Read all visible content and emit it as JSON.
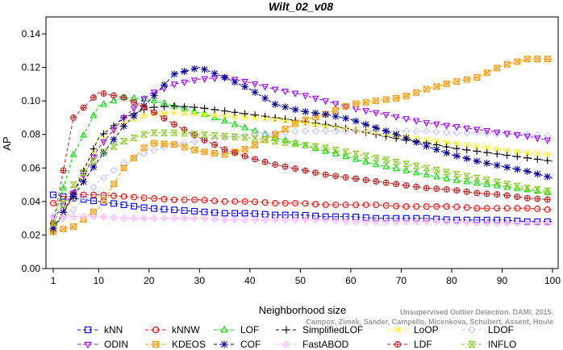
{
  "chart_data": {
    "type": "line",
    "title": "Wilt_02_v08",
    "xlabel": "Neighborhood size",
    "ylabel": "AP",
    "xlim": [
      1,
      100
    ],
    "ylim": [
      0,
      0.14
    ],
    "x_ticks": [
      1,
      10,
      20,
      30,
      40,
      50,
      60,
      70,
      80,
      90,
      100
    ],
    "y_ticks": [
      0.0,
      0.02,
      0.04,
      0.06,
      0.08,
      0.1,
      0.12,
      0.14
    ],
    "y_tick_labels": [
      "0.00",
      "0.02",
      "0.04",
      "0.06",
      "0.08",
      "0.10",
      "0.12",
      "0.14"
    ],
    "grid": false,
    "legend_position": "bottom",
    "citation": [
      "Unsupervised Outlier Detection. DAMI, 2015.",
      "Campos, Zimek, Sander, Campello, Micenkova, Schubert, Assent, Houle"
    ],
    "x": [
      1,
      5,
      10,
      15,
      20,
      25,
      30,
      35,
      40,
      45,
      50,
      55,
      60,
      65,
      70,
      75,
      80,
      85,
      90,
      95,
      100
    ],
    "series": [
      {
        "name": "kNN",
        "color": "#0000ff",
        "marker": "square",
        "line": "dashed",
        "values": [
          0.044,
          0.042,
          0.04,
          0.038,
          0.036,
          0.035,
          0.034,
          0.033,
          0.033,
          0.032,
          0.032,
          0.031,
          0.031,
          0.03,
          0.03,
          0.03,
          0.029,
          0.029,
          0.029,
          0.028,
          0.028
        ]
      },
      {
        "name": "kNNW",
        "color": "#ff0000",
        "marker": "circle",
        "line": "dashed",
        "values": [
          0.039,
          0.044,
          0.044,
          0.043,
          0.042,
          0.041,
          0.041,
          0.04,
          0.04,
          0.039,
          0.039,
          0.038,
          0.038,
          0.038,
          0.037,
          0.037,
          0.037,
          0.036,
          0.036,
          0.036,
          0.035
        ]
      },
      {
        "name": "LOF",
        "color": "#00dd00",
        "marker": "triangle",
        "line": "dashed",
        "values": [
          0.028,
          0.068,
          0.097,
          0.102,
          0.101,
          0.097,
          0.093,
          0.088,
          0.083,
          0.078,
          0.074,
          0.07,
          0.066,
          0.062,
          0.059,
          0.056,
          0.053,
          0.051,
          0.049,
          0.047,
          0.045
        ]
      },
      {
        "name": "SimplifiedLOF",
        "color": "#000000",
        "marker": "plus",
        "line": "dashed",
        "values": [
          0.022,
          0.045,
          0.078,
          0.09,
          0.096,
          0.097,
          0.096,
          0.094,
          0.092,
          0.09,
          0.088,
          0.086,
          0.083,
          0.08,
          0.077,
          0.075,
          0.072,
          0.07,
          0.068,
          0.066,
          0.064
        ]
      },
      {
        "name": "LoOP",
        "color": "#ffee00",
        "marker": "x",
        "line": "dashed",
        "values": [
          0.023,
          0.042,
          0.075,
          0.087,
          0.092,
          0.093,
          0.092,
          0.091,
          0.09,
          0.089,
          0.087,
          0.085,
          0.083,
          0.081,
          0.079,
          0.077,
          0.075,
          0.073,
          0.071,
          0.069,
          0.068
        ]
      },
      {
        "name": "LDOF",
        "color": "#c8c8ff",
        "marker": "diamond",
        "line": "dashed",
        "values": [
          0.025,
          0.035,
          0.052,
          0.063,
          0.07,
          0.074,
          0.076,
          0.078,
          0.08,
          0.081,
          0.082,
          0.082,
          0.082,
          0.082,
          0.082,
          0.082,
          0.081,
          0.081,
          0.08,
          0.08,
          0.079
        ]
      },
      {
        "name": "ODIN",
        "color": "#9900ff",
        "marker": "triangle-down",
        "line": "dashed",
        "values": [
          0.03,
          0.045,
          0.072,
          0.09,
          0.104,
          0.11,
          0.113,
          0.114,
          0.111,
          0.107,
          0.104,
          0.1,
          0.096,
          0.093,
          0.09,
          0.087,
          0.085,
          0.083,
          0.081,
          0.079,
          0.076
        ]
      },
      {
        "name": "KDEOS",
        "color": "#ff9900",
        "marker": "square-x",
        "line": "dashed",
        "values": [
          0.022,
          0.025,
          0.036,
          0.06,
          0.075,
          0.074,
          0.07,
          0.068,
          0.072,
          0.08,
          0.088,
          0.092,
          0.098,
          0.1,
          0.102,
          0.107,
          0.111,
          0.114,
          0.121,
          0.125,
          0.125
        ]
      },
      {
        "name": "COF",
        "color": "#000099",
        "marker": "star",
        "line": "dashed",
        "values": [
          0.024,
          0.043,
          0.065,
          0.085,
          0.1,
          0.116,
          0.12,
          0.114,
          0.107,
          0.098,
          0.094,
          0.092,
          0.089,
          0.084,
          0.079,
          0.073,
          0.068,
          0.064,
          0.061,
          0.058,
          0.054
        ]
      },
      {
        "name": "FastABOD",
        "color": "#ffbbff",
        "marker": "diamond-plus",
        "line": "dashed",
        "values": [
          0.031,
          0.031,
          0.031,
          0.03,
          0.03,
          0.03,
          0.03,
          0.029,
          0.029,
          0.029,
          0.029,
          0.029,
          0.028,
          0.028,
          0.028,
          0.028,
          0.028,
          0.027,
          0.027,
          0.027,
          0.027
        ]
      },
      {
        "name": "LDF",
        "color": "#bb2222",
        "marker": "circle-plus",
        "line": "dashed",
        "values": [
          0.027,
          0.09,
          0.105,
          0.102,
          0.095,
          0.086,
          0.078,
          0.071,
          0.066,
          0.062,
          0.059,
          0.056,
          0.054,
          0.052,
          0.05,
          0.048,
          0.047,
          0.045,
          0.044,
          0.042,
          0.041
        ]
      },
      {
        "name": "INFLO",
        "color": "#88cc22",
        "marker": "hourglass",
        "line": "dashed",
        "values": [
          0.027,
          0.05,
          0.068,
          0.076,
          0.081,
          0.081,
          0.08,
          0.079,
          0.078,
          0.076,
          0.074,
          0.072,
          0.069,
          0.066,
          0.063,
          0.06,
          0.057,
          0.054,
          0.051,
          0.048,
          0.046
        ]
      }
    ],
    "legend_rows": [
      [
        "kNN",
        "kNNW",
        "LOF",
        "SimplifiedLOF",
        "LoOP",
        "LDOF"
      ],
      [
        "ODIN",
        "KDEOS",
        "COF",
        "FastABOD",
        "LDF",
        "INFLO"
      ]
    ]
  }
}
